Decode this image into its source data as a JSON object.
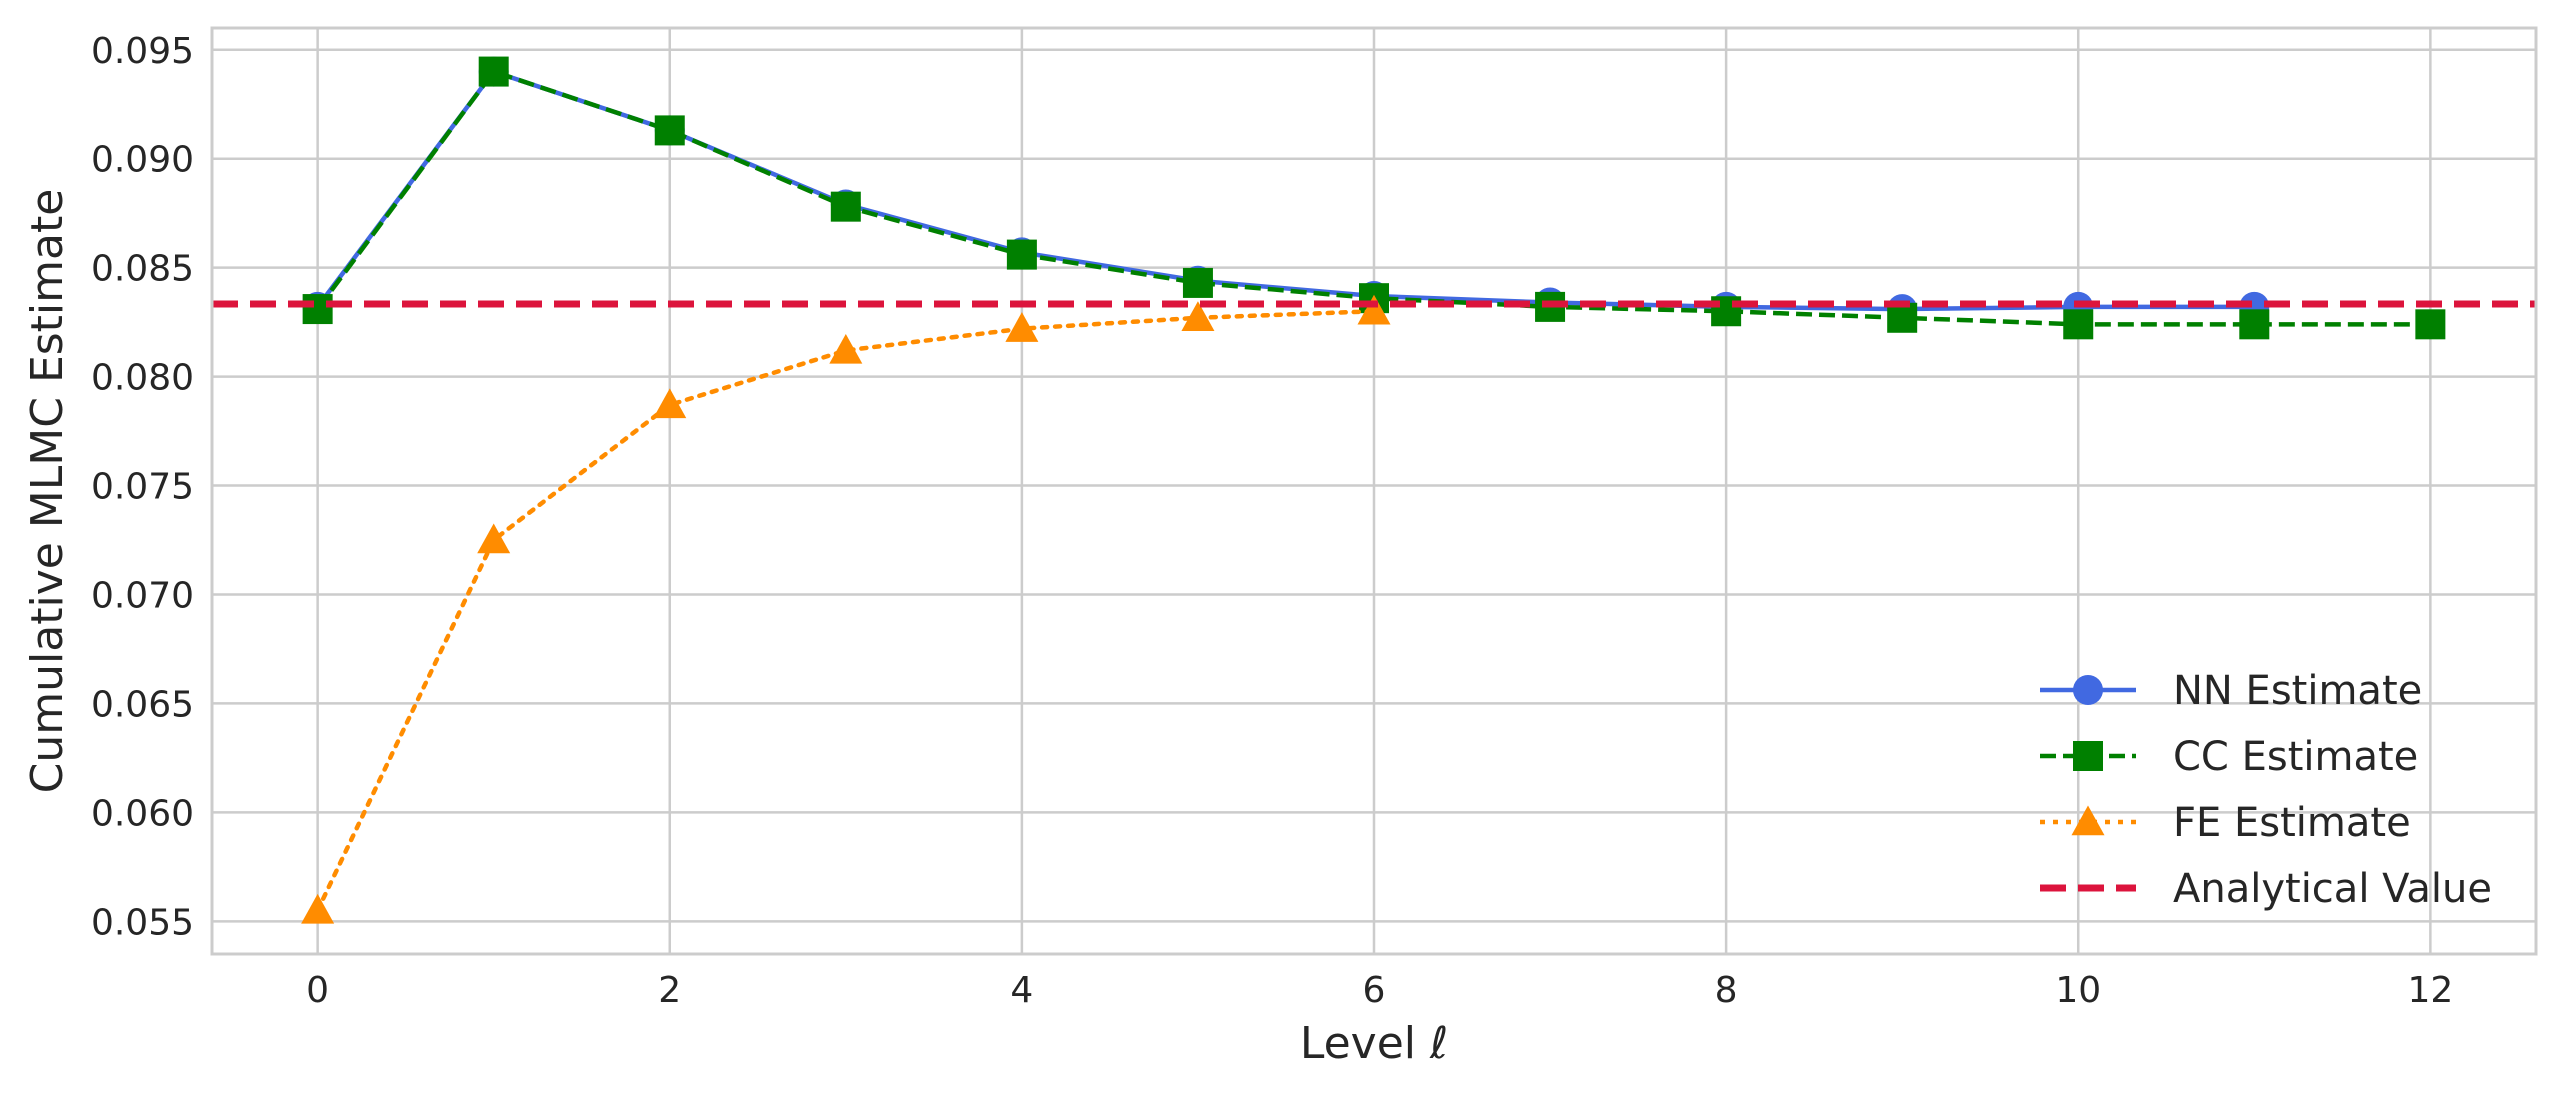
{
  "chart_data": {
    "type": "line",
    "title": "",
    "xlabel": "Level ℓ",
    "ylabel": "Cumulative MLMC Estimate",
    "xlim": [
      -0.6,
      12.6
    ],
    "ylim": [
      0.0535,
      0.096
    ],
    "xticks": [
      0,
      2,
      4,
      6,
      8,
      10,
      12
    ],
    "xtick_labels": [
      "0",
      "2",
      "4",
      "6",
      "8",
      "10",
      "12"
    ],
    "yticks": [
      0.055,
      0.06,
      0.065,
      0.07,
      0.075,
      0.08,
      0.085,
      0.09,
      0.095
    ],
    "ytick_labels": [
      "0.055",
      "0.060",
      "0.065",
      "0.070",
      "0.075",
      "0.080",
      "0.085",
      "0.090",
      "0.095"
    ],
    "grid": true,
    "legend_position": "bottom-right",
    "series": [
      {
        "name": "NN Estimate",
        "color": "#4169e1",
        "style": "solid",
        "marker": "circle",
        "x": [
          0,
          1,
          2,
          3,
          4,
          5,
          6,
          7,
          8,
          9,
          10,
          11
        ],
        "y": [
          0.0832,
          0.094,
          0.0913,
          0.0879,
          0.0857,
          0.0844,
          0.0837,
          0.0834,
          0.0832,
          0.0831,
          0.0832,
          0.0832
        ]
      },
      {
        "name": "CC Estimate",
        "color": "#008000",
        "style": "dashed",
        "marker": "square",
        "x": [
          0,
          1,
          2,
          3,
          4,
          5,
          6,
          7,
          8,
          9,
          10,
          11,
          12
        ],
        "y": [
          0.0831,
          0.094,
          0.0913,
          0.0878,
          0.0856,
          0.0843,
          0.0836,
          0.0832,
          0.083,
          0.0827,
          0.0824,
          0.0824,
          0.0824
        ]
      },
      {
        "name": "FE Estimate",
        "color": "#ff8c00",
        "style": "dotted",
        "marker": "triangle",
        "x": [
          0,
          1,
          2,
          3,
          4,
          5,
          6
        ],
        "y": [
          0.0555,
          0.0725,
          0.0787,
          0.0812,
          0.0822,
          0.0827,
          0.083
        ]
      },
      {
        "name": "Analytical Value",
        "color": "#dc143c",
        "style": "dashed-thick",
        "marker": "none",
        "hline": 0.08333
      }
    ]
  }
}
